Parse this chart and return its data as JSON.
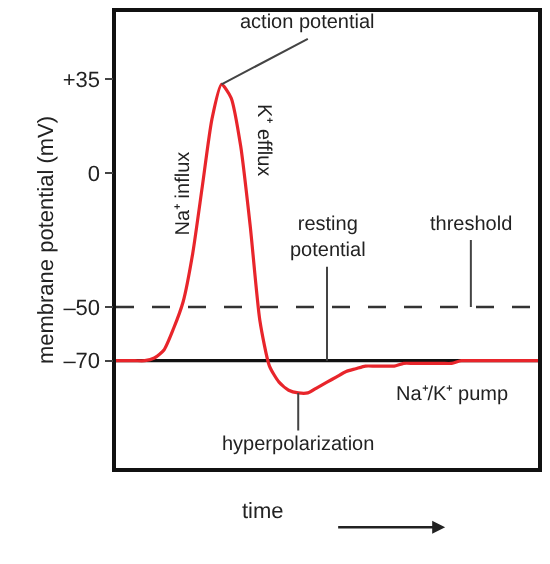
{
  "chart_data": {
    "type": "line",
    "xlabel": "time",
    "ylabel": "membrane potential (mV)",
    "categories": [
      null,
      null,
      null,
      null,
      null,
      null,
      null,
      null,
      null,
      null,
      null,
      null,
      null,
      null,
      null,
      null,
      null,
      null,
      null,
      null,
      null,
      null,
      null,
      null,
      null,
      null,
      null,
      null,
      null,
      null,
      null,
      null,
      null,
      null,
      null,
      null,
      null,
      null,
      null,
      null,
      null,
      null,
      null,
      null,
      null
    ],
    "series": [
      {
        "color": "#e8252b",
        "values": [
          -70,
          -70,
          -70,
          -70,
          -69,
          -66,
          -58,
          -48,
          -30,
          -5,
          20,
          33,
          28,
          10,
          -20,
          -55,
          -72,
          -78,
          -81,
          -82,
          -82,
          -80,
          -78,
          -76,
          -74,
          -73,
          -72,
          -72,
          -72,
          -72,
          -71,
          -71,
          -71,
          -71,
          -71,
          -71,
          -70,
          -70,
          -70,
          -70,
          -70,
          -70,
          -70,
          -70,
          -70
        ]
      }
    ],
    "ylim": [
      -110,
      60
    ],
    "yticks": [
      {
        "value": 35,
        "label": "+35"
      },
      0,
      {
        "value": -50,
        "label": "–50"
      },
      {
        "value": -70,
        "label": "–70"
      }
    ],
    "ref_lines": [
      {
        "axis": "y",
        "value": -50,
        "label": "threshold",
        "line_style": "dashed",
        "color": "#333333"
      },
      {
        "axis": "y",
        "value": -70,
        "label": "resting potential",
        "line_style": "solid",
        "color": "#111111"
      }
    ],
    "annotations": [
      "action potential",
      "Na⁺ influx",
      "K⁺ efflux",
      "hyperpolarization",
      "Na⁺/K⁺ pump"
    ],
    "grid": false,
    "legend": false,
    "marker": "none",
    "line_style": "solid"
  }
}
